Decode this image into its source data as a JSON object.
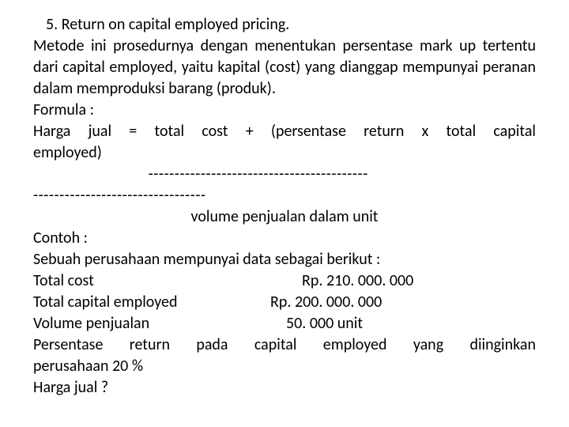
{
  "title": "5. Return on capital employed pricing.",
  "para1": "Metode ini prosedurnya dengan menentukan persentase mark up tertentu dari capital employed, yaitu kapital (cost) yang dianggap mempunyai peranan dalam memproduksi barang (produk).",
  "formula_label": "Formula :",
  "formula_line1": "Harga jual = total cost + (persentase return x total capital employed)",
  "divider_indent": "                             ------------------------------------------",
  "divider_rest": "---------------------------------",
  "denominator": "volume penjualan dalam unit",
  "contoh_label": "Contoh :",
  "contoh_intro": "Sebuah perusahaan mempunyai data sebagai berikut :",
  "data": {
    "total_cost_label": "Total cost",
    "total_cost_value": "Rp. 210. 000. 000",
    "capital_label": "Total capital employed",
    "capital_value": "Rp. 200. 000. 000",
    "volume_label": "Volume penjualan",
    "volume_value": "50. 000 unit"
  },
  "return_line1": "Persentase return pada capital employed yang diinginkan",
  "return_line2": "perusahaan 20 %",
  "question": "Harga jual ?"
}
